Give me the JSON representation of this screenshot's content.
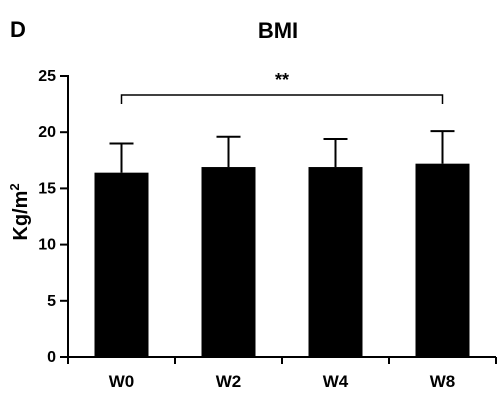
{
  "panel_label": "D",
  "chart_data": {
    "type": "bar",
    "title": "BMI",
    "xlabel": "",
    "ylabel": "Kg/m",
    "ylabel_superscript": "2",
    "categories": [
      "W0",
      "W2",
      "W4",
      "W8"
    ],
    "values": [
      16.4,
      16.9,
      16.9,
      17.2
    ],
    "errors": [
      2.6,
      2.7,
      2.5,
      2.9
    ],
    "ylim": [
      0,
      25
    ],
    "yticks": [
      0,
      5,
      10,
      15,
      20,
      25
    ],
    "bar_color": "#000000",
    "grid": false,
    "significance": {
      "from": "W0",
      "to": "W8",
      "label": "**"
    }
  }
}
